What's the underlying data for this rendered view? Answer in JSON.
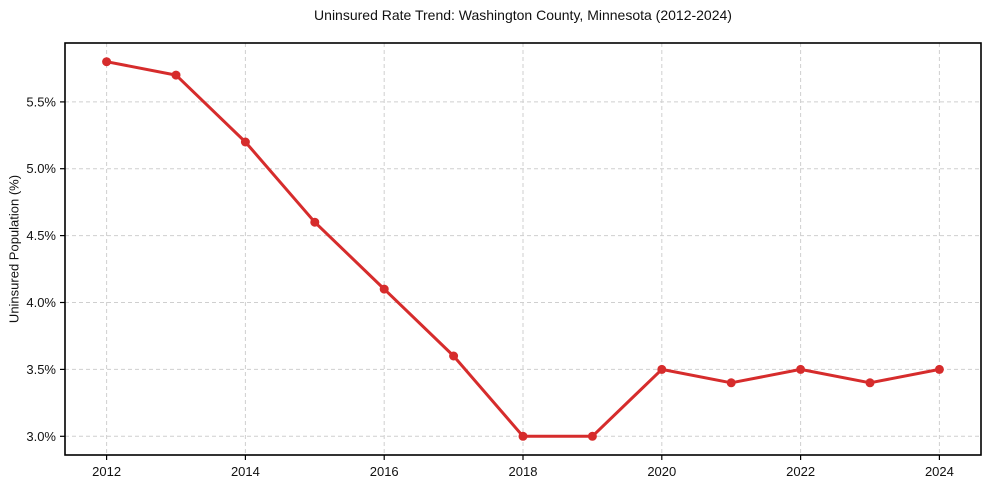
{
  "chart_data": {
    "type": "line",
    "title": "Uninsured Rate Trend: Washington County, Minnesota (2012-2024)",
    "xlabel": "",
    "ylabel": "Uninsured Population (%)",
    "x": [
      2012,
      2013,
      2014,
      2015,
      2016,
      2017,
      2018,
      2019,
      2020,
      2021,
      2022,
      2023,
      2024
    ],
    "values": [
      5.8,
      5.7,
      5.2,
      4.6,
      4.1,
      3.6,
      3.0,
      3.0,
      3.5,
      3.4,
      3.5,
      3.4,
      3.5
    ],
    "xticks": [
      2012,
      2014,
      2016,
      2018,
      2020,
      2022,
      2024
    ],
    "xtick_labels": [
      "2012",
      "2014",
      "2016",
      "2018",
      "2020",
      "2022",
      "2024"
    ],
    "yticks": [
      3.0,
      3.5,
      4.0,
      4.5,
      5.0,
      5.5
    ],
    "ytick_labels": [
      "3.0%",
      "3.5%",
      "4.0%",
      "4.5%",
      "5.0%",
      "5.5%"
    ],
    "xlim": [
      2011.4,
      2024.6
    ],
    "ylim": [
      2.86,
      5.94
    ],
    "grid": true,
    "legend": "none",
    "line_color": "#d62c2c",
    "marker": "circle",
    "grid_color": "#cfcfcf",
    "axis_color": "#000000"
  }
}
